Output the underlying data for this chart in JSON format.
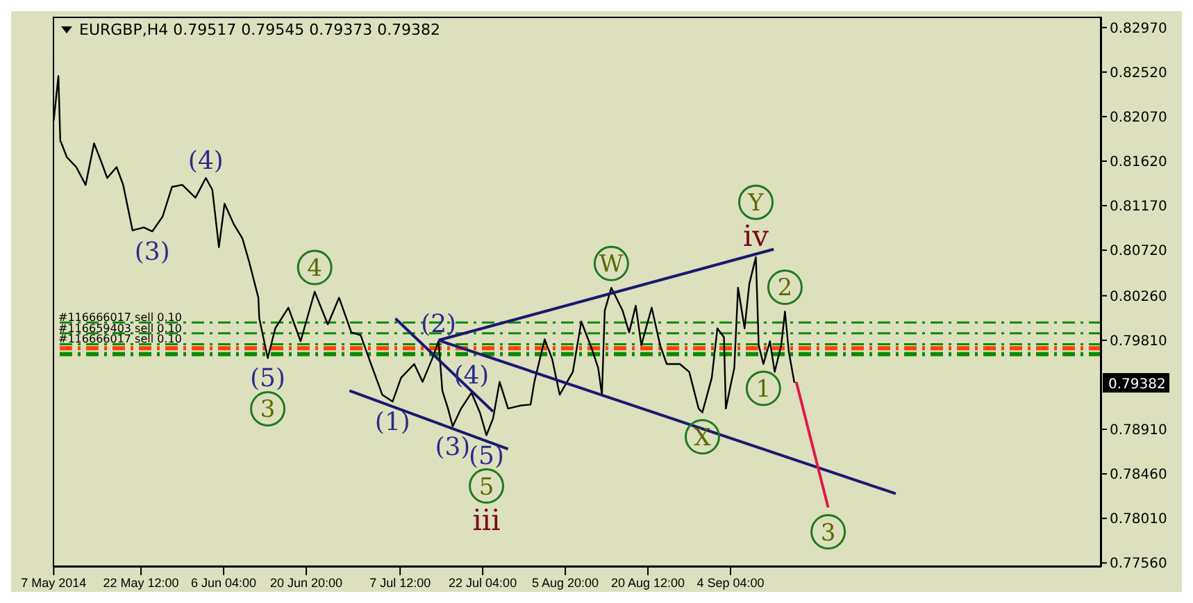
{
  "chart_data": {
    "type": "line",
    "title": "EURGBP,H4  0.79517 0.79545 0.79373 0.79382",
    "xlim": [
      "2014-05-06T20:00",
      "2014-11-09T00:00"
    ],
    "xticks": [
      {
        "value": "2014-05-07T00:00",
        "label": "7 May 2014"
      },
      {
        "value": "2014-05-22T12:00",
        "label": "22 May 12:00"
      },
      {
        "value": "2014-06-06T04:00",
        "label": "6 Jun 04:00"
      },
      {
        "value": "2014-06-20T20:00",
        "label": "20 Jun 20:00"
      },
      {
        "value": "2014-07-07T12:00",
        "label": "7 Jul 12:00"
      },
      {
        "value": "2014-07-22T04:00",
        "label": "22 Jul 04:00"
      },
      {
        "value": "2014-08-05T20:00",
        "label": "5 Aug 20:00"
      },
      {
        "value": "2014-08-20T12:00",
        "label": "20 Aug 12:00"
      },
      {
        "value": "2014-09-04T04:00",
        "label": "4 Sep 04:00"
      }
    ],
    "ylim": [
      0.7752,
      0.8308
    ],
    "yticks": [
      {
        "value": 0.8297,
        "label": "0.82970"
      },
      {
        "value": 0.8252,
        "label": "0.82520"
      },
      {
        "value": 0.8207,
        "label": "0.82070"
      },
      {
        "value": 0.8162,
        "label": "0.81620"
      },
      {
        "value": 0.8117,
        "label": "0.81170"
      },
      {
        "value": 0.8072,
        "label": "0.80720"
      },
      {
        "value": 0.8026,
        "label": "0.80260"
      },
      {
        "value": 0.7981,
        "label": "0.79810"
      },
      {
        "value": 0.7891,
        "label": "0.78910"
      },
      {
        "value": 0.7846,
        "label": "0.78460"
      },
      {
        "value": 0.7801,
        "label": "0.78010"
      },
      {
        "value": 0.7756,
        "label": "0.77560"
      }
    ],
    "series": [
      {
        "color": "#000000",
        "x": [
          "2014-05-07T00:00",
          "2014-05-07T20:00",
          "2014-05-08T04:00",
          "2014-05-09T08:00",
          "2014-05-11T00:00",
          "2014-05-12T16:00",
          "2014-05-14T04:00",
          "2014-05-15T08:00",
          "2014-05-16T12:00",
          "2014-05-18T04:00",
          "2014-05-19T08:00",
          "2014-05-21T00:00",
          "2014-05-23T00:00",
          "2014-05-24T12:00",
          "2014-05-26T08:00",
          "2014-05-28T00:00",
          "2014-05-29T20:00",
          "2014-06-01T04:00",
          "2014-06-03T00:00",
          "2014-06-04T04:00",
          "2014-06-05T08:00",
          "2014-06-06T08:00",
          "2014-06-08T00:00",
          "2014-06-09T12:00",
          "2014-06-10T16:00",
          "2014-06-12T08:00",
          "2014-06-12T12:00",
          "2014-06-14T00:00",
          "2014-06-15T08:00",
          "2014-06-17T16:00",
          "2014-06-19T20:00",
          "2014-06-22T08:00",
          "2014-06-24T16:00",
          "2014-06-26T16:00",
          "2014-06-28T20:00",
          "2014-06-30T12:00",
          "2014-07-02T08:00",
          "2014-07-04T08:00",
          "2014-07-06T04:00",
          "2014-07-07T16:00",
          "2014-07-10T00:00",
          "2014-07-11T12:00",
          "2014-07-13T04:00",
          "2014-07-14T08:00",
          "2014-07-15T00:00",
          "2014-07-16T00:00",
          "2014-07-16T20:00",
          "2014-07-18T08:00",
          "2014-07-20T04:00",
          "2014-07-21T16:00",
          "2014-07-22T20:00",
          "2014-07-24T00:00",
          "2014-07-25T04:00",
          "2014-07-26T16:00",
          "2014-07-28T20:00",
          "2014-07-30T16:00",
          "2014-07-31T08:00",
          "2014-08-02T04:00",
          "2014-08-03T12:00",
          "2014-08-04T20:00",
          "2014-08-07T04:00",
          "2014-08-08T16:00",
          "2014-08-10T12:00",
          "2014-08-11T16:00",
          "2014-08-12T08:00",
          "2014-08-12T20:00",
          "2014-08-14T00:00",
          "2014-08-16T00:00",
          "2014-08-17T04:00",
          "2014-08-18T08:00",
          "2014-08-19T08:00",
          "2014-08-21T04:00",
          "2014-08-22T16:00",
          "2014-08-23T20:00",
          "2014-08-26T04:00",
          "2014-08-27T20:00",
          "2014-08-29T12:00",
          "2014-08-30T04:00",
          "2014-08-31T20:00",
          "2014-09-01T20:00",
          "2014-09-03T00:00",
          "2014-09-03T08:00",
          "2014-09-04T04:00",
          "2014-09-04T20:00",
          "2014-09-05T12:00",
          "2014-09-06T16:00",
          "2014-09-07T12:00",
          "2014-09-08T16:00",
          "2014-09-09T04:00",
          "2014-09-10T00:00",
          "2014-09-11T04:00",
          "2014-09-12T00:00",
          "2014-09-13T04:00",
          "2014-09-13T20:00",
          "2014-09-14T12:00",
          "2014-09-15T12:00"
        ],
        "values": [
          0.8203,
          0.8248,
          0.8183,
          0.8166,
          0.8156,
          0.8138,
          0.818,
          0.8163,
          0.8145,
          0.8156,
          0.8138,
          0.8092,
          0.8095,
          0.8091,
          0.8106,
          0.8136,
          0.8138,
          0.8125,
          0.8145,
          0.8133,
          0.8075,
          0.8119,
          0.8098,
          0.8084,
          0.8061,
          0.8024,
          0.8003,
          0.7963,
          0.7993,
          0.8014,
          0.798,
          0.803,
          0.7997,
          0.8024,
          0.7989,
          0.7986,
          0.7957,
          0.7926,
          0.7919,
          0.7943,
          0.7957,
          0.7939,
          0.7962,
          0.798,
          0.793,
          0.7912,
          0.7894,
          0.7912,
          0.7928,
          0.7908,
          0.7885,
          0.7902,
          0.7939,
          0.7912,
          0.7915,
          0.7916,
          0.7939,
          0.7982,
          0.7962,
          0.7926,
          0.7949,
          0.8,
          0.7973,
          0.7953,
          0.7926,
          0.8011,
          0.8034,
          0.8011,
          0.7989,
          0.8016,
          0.7976,
          0.8014,
          0.7976,
          0.7957,
          0.7957,
          0.7949,
          0.7912,
          0.7908,
          0.7943,
          0.7993,
          0.7984,
          0.7912,
          0.7935,
          0.7953,
          0.8034,
          0.7993,
          0.8038,
          0.8065,
          0.7976,
          0.7957,
          0.798,
          0.7949,
          0.7976,
          0.801,
          0.797,
          0.7938
        ]
      },
      {
        "color": "#191970",
        "x": [
          "2014-07-14T08:00",
          "2014-09-11T20:00"
        ],
        "values": [
          0.7981,
          0.8073
        ]
      },
      {
        "color": "#191970",
        "x": [
          "2014-07-14T08:00",
          "2014-10-03T12:00"
        ],
        "values": [
          0.7981,
          0.7826
        ]
      },
      {
        "color": "#191970",
        "x": [
          "2014-06-28T12:00",
          "2014-07-26T16:00"
        ],
        "values": [
          0.793,
          0.7871
        ]
      },
      {
        "color": "#191970",
        "x": [
          "2014-07-06T16:00",
          "2014-07-24T00:00"
        ],
        "values": [
          0.8003,
          0.7909
        ]
      },
      {
        "color": "#e0194a",
        "x": [
          "2014-09-15T20:00",
          "2014-09-21T12:00"
        ],
        "values": [
          0.7939,
          0.7812
        ]
      }
    ],
    "ref_lines": [
      {
        "axis": "y",
        "value": 0.7999,
        "label": "#116666017 sell 0.10",
        "color": "#0a8a0a",
        "line_style": "dashed"
      },
      {
        "axis": "y",
        "value": 0.7988,
        "label": "#116659403 sell 0.10",
        "color": "#0a8a0a",
        "line_style": "dashed"
      },
      {
        "axis": "y",
        "value": 0.7977,
        "label": "#116666017 sell 0.10",
        "color": "#0a8a0a",
        "line_style": "dashed"
      },
      {
        "axis": "y",
        "value": 0.7973,
        "color": "#ff4500",
        "line_style": "dashed"
      },
      {
        "axis": "y",
        "value": 0.7967,
        "color": "#0a8a0a",
        "line_style": "dashed"
      }
    ],
    "annotations": [
      {
        "text": "(3)",
        "x": "2014-05-24T12:00",
        "y": 0.8091
      },
      {
        "text": "(4)",
        "x": "2014-06-03T00:00",
        "y": 0.8145
      },
      {
        "text": "(5)",
        "x": "2014-06-14T00:00",
        "y": 0.7963
      },
      {
        "text": "3",
        "x": "2014-06-14T00:00",
        "y": 0.7963
      },
      {
        "text": "4",
        "x": "2014-06-22T08:00",
        "y": 0.803
      },
      {
        "text": "(1)",
        "x": "2014-07-06T04:00",
        "y": 0.7919
      },
      {
        "text": "(2)",
        "x": "2014-07-14T08:00",
        "y": 0.798
      },
      {
        "text": "(3)",
        "x": "2014-07-16T20:00",
        "y": 0.7894
      },
      {
        "text": "(4)",
        "x": "2014-07-20T04:00",
        "y": 0.7928
      },
      {
        "text": "(5)",
        "x": "2014-07-22T20:00",
        "y": 0.7885
      },
      {
        "text": "5",
        "x": "2014-07-22T20:00",
        "y": 0.7885
      },
      {
        "text": "iii",
        "x": "2014-07-22T20:00",
        "y": 0.7885
      },
      {
        "text": "W",
        "x": "2014-08-14T00:00",
        "y": 0.8034
      },
      {
        "text": "X",
        "x": "2014-08-30T04:00",
        "y": 0.7908
      },
      {
        "text": "iv",
        "x": "2014-09-08T16:00",
        "y": 0.8065
      },
      {
        "text": "Y",
        "x": "2014-09-08T16:00",
        "y": 0.8065
      },
      {
        "text": "1",
        "x": "2014-09-10T00:00",
        "y": 0.7957
      },
      {
        "text": "2",
        "x": "2014-09-13T20:00",
        "y": 0.801
      },
      {
        "text": "3",
        "x": "2014-09-21T12:00",
        "y": 0.7812
      },
      "0.79382"
    ]
  }
}
